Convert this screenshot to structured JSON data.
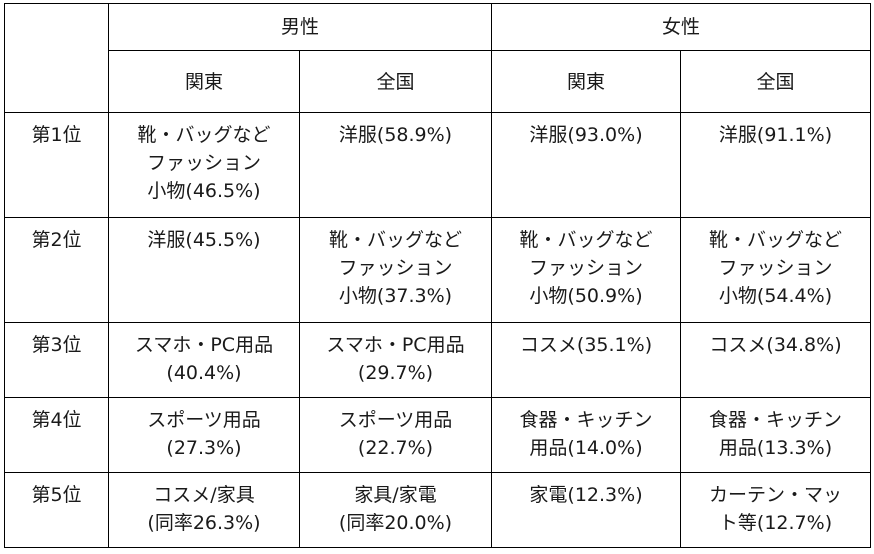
{
  "header": {
    "corner": "",
    "male": "男性",
    "female": "女性",
    "regions": [
      "関東",
      "全国",
      "関東",
      "全国"
    ]
  },
  "rows": [
    {
      "rank": "第1位",
      "cells": [
        "靴・バッグなど\nファッション\n小物(46.5%)",
        "洋服(58.9%)",
        "洋服(93.0%)",
        "洋服(91.1%)"
      ]
    },
    {
      "rank": "第2位",
      "cells": [
        "洋服(45.5%)",
        "靴・バッグなど\nファッション\n小物(37.3%)",
        "靴・バッグなど\nファッション\n小物(50.9%)",
        "靴・バッグなど\nファッション\n小物(54.4%)"
      ]
    },
    {
      "rank": "第3位",
      "cells": [
        "スマホ・PC用品\n(40.4%)",
        "スマホ・PC用品\n(29.7%)",
        "コスメ(35.1%)",
        "コスメ(34.8%)"
      ]
    },
    {
      "rank": "第4位",
      "cells": [
        "スポーツ用品\n(27.3%)",
        "スポーツ用品\n(22.7%)",
        "食器・キッチン\n用品(14.0%)",
        "食器・キッチン\n用品(13.3%)"
      ]
    },
    {
      "rank": "第5位",
      "cells": [
        "コスメ/家具\n(同率26.3%)",
        "家具/家電\n(同率20.0%)",
        "家電(12.3%)",
        "カーテン・マッ\nト等(12.7%)"
      ]
    }
  ]
}
